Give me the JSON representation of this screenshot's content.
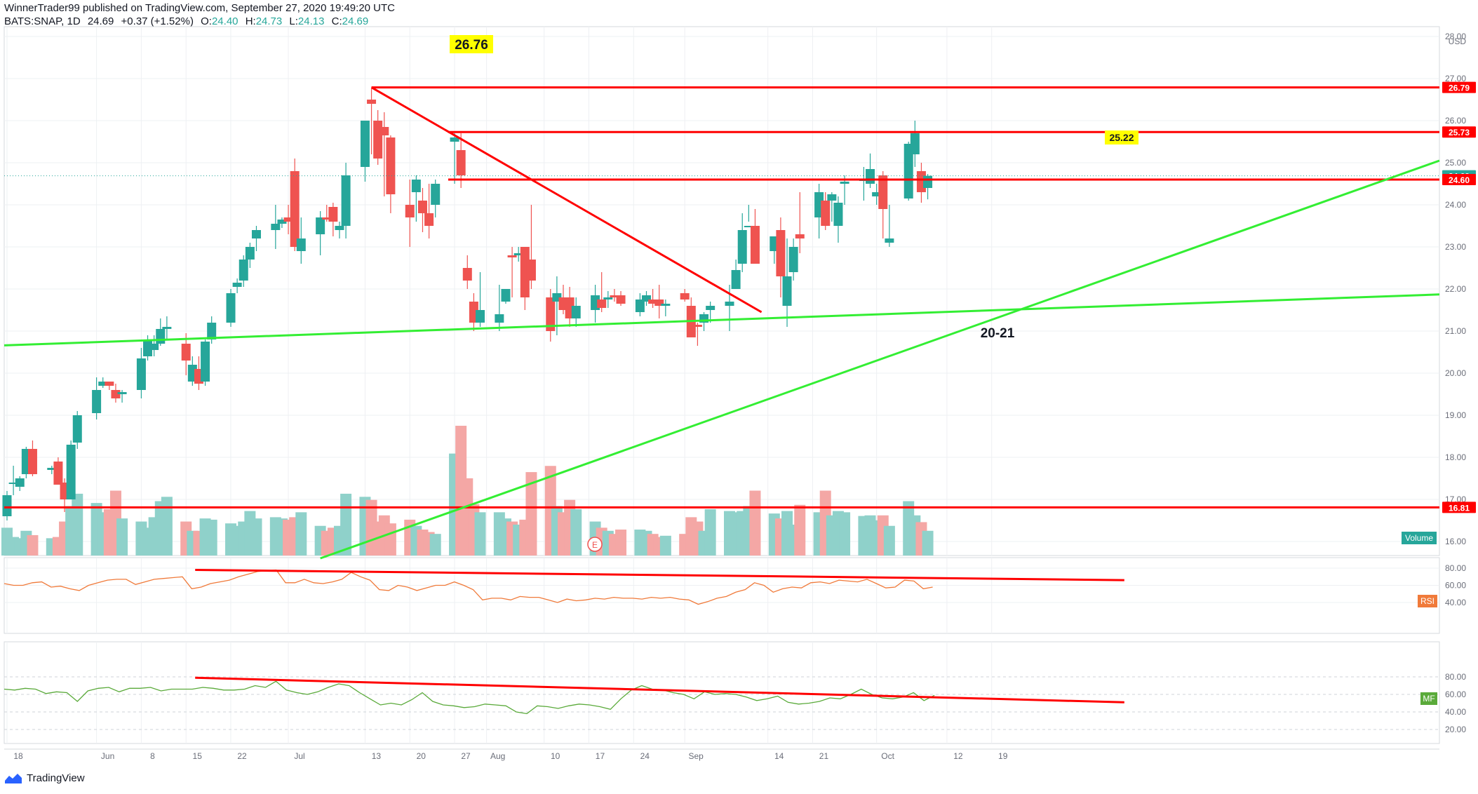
{
  "header": {
    "line1": "WinnerTrader99 published on TradingView.com, September 27, 2020 19:49:20 UTC",
    "symbol": "BATS:SNAP, 1D",
    "last": "24.69",
    "change": "+0.37 (+1.52%)",
    "o_label": "O:",
    "o_val": "24.40",
    "h_label": "H:",
    "h_val": "24.73",
    "l_label": "L:",
    "l_val": "24.13",
    "c_label": "C:",
    "c_val": "24.69"
  },
  "footer": {
    "brand": "TradingView"
  },
  "colors": {
    "up": "#26a69a",
    "down": "#ef5350",
    "vol_up": "#8fd1ca",
    "vol_down": "#f4a7a5",
    "trend_red": "#ff0000",
    "trend_green": "#33ee33",
    "rsi": "#f07a3a",
    "mf": "#5aaa3a",
    "grid": "#eef0f3"
  },
  "annotations": {
    "high_label": "26.76",
    "recent_high_label": "25.22",
    "low_zone_label": "20-21",
    "earnings_marker": "E"
  },
  "price_axis": {
    "unit": "USD",
    "ticks": [
      "28.00",
      "27.00",
      "26.00",
      "25.00",
      "24.00",
      "23.00",
      "22.00",
      "21.00",
      "20.00",
      "19.00",
      "18.00",
      "17.00",
      "16.00"
    ],
    "level_badges": [
      {
        "text": "26.79",
        "value": 26.79
      },
      {
        "text": "25.73",
        "value": 25.73
      },
      {
        "text": "24.69",
        "value": 24.69,
        "kind": "last"
      },
      {
        "text": "24.60",
        "value": 24.6
      },
      {
        "text": "16.81",
        "value": 16.81
      }
    ],
    "volume_label": "Volume"
  },
  "rsi_panel": {
    "label": "RSI",
    "ticks": [
      "80.00",
      "60.00",
      "40.00"
    ]
  },
  "mf_panel": {
    "label": "MF",
    "ticks": [
      "80.00",
      "60.00",
      "40.00",
      "20.00"
    ]
  },
  "x_axis": {
    "ticks": [
      "18",
      "Jun",
      "8",
      "15",
      "22",
      "Jul",
      "13",
      "20",
      "27",
      "Aug",
      "10",
      "17",
      "24",
      "Sep",
      "14",
      "21",
      "Oct",
      "12",
      "19"
    ],
    "tick_days": [
      0,
      14,
      21,
      28,
      35,
      44,
      56,
      63,
      70,
      75,
      84,
      91,
      98,
      106,
      119,
      126,
      136,
      147,
      154
    ]
  },
  "chart_data": {
    "type": "candlestick",
    "symbol": "BATS:SNAP",
    "interval": "1D",
    "x_start": "2020-05-18",
    "candles": {
      "columns": [
        "day_index",
        "open",
        "high",
        "low",
        "close",
        "volume_relative"
      ],
      "rows": [
        [
          0,
          16.6,
          17.2,
          16.5,
          17.1,
          0.45
        ],
        [
          1,
          17.4,
          17.8,
          17.1,
          17.4,
          0.3
        ],
        [
          2,
          17.3,
          17.55,
          17.2,
          17.5,
          0.28
        ],
        [
          3,
          17.6,
          18.25,
          17.5,
          18.2,
          0.4
        ],
        [
          4,
          18.2,
          18.4,
          17.55,
          17.6,
          0.33
        ],
        [
          7,
          17.7,
          17.8,
          17.6,
          17.75,
          0.28
        ],
        [
          8,
          17.9,
          18.0,
          17.4,
          17.35,
          0.3
        ],
        [
          9,
          17.4,
          17.5,
          16.7,
          17.0,
          0.55
        ],
        [
          10,
          17.0,
          18.4,
          17.0,
          18.3,
          0.8
        ],
        [
          11,
          18.35,
          19.1,
          18.2,
          19.0,
          1.0
        ],
        [
          14,
          19.05,
          19.9,
          18.9,
          19.6,
          0.85
        ],
        [
          15,
          19.7,
          19.9,
          19.65,
          19.8,
          0.7
        ],
        [
          16,
          19.8,
          19.8,
          19.6,
          19.7,
          0.75
        ],
        [
          17,
          19.6,
          19.75,
          19.3,
          19.4,
          1.05
        ],
        [
          18,
          19.5,
          19.6,
          19.3,
          19.55,
          0.6
        ],
        [
          21,
          19.6,
          20.6,
          19.4,
          20.35,
          0.55
        ],
        [
          22,
          20.4,
          20.9,
          20.3,
          20.8,
          0.45
        ],
        [
          23,
          20.55,
          20.9,
          20.4,
          20.7,
          0.62
        ],
        [
          24,
          20.7,
          21.3,
          20.65,
          21.05,
          0.88
        ],
        [
          25,
          21.05,
          21.35,
          20.8,
          21.1,
          0.95
        ],
        [
          28,
          20.7,
          20.95,
          19.95,
          20.3,
          0.55
        ],
        [
          29,
          19.8,
          20.4,
          19.7,
          20.2,
          0.4
        ],
        [
          30,
          20.1,
          20.4,
          19.6,
          19.75,
          0.4
        ],
        [
          31,
          19.8,
          20.8,
          19.7,
          20.75,
          0.6
        ],
        [
          32,
          20.8,
          21.35,
          20.7,
          21.2,
          0.58
        ],
        [
          35,
          21.2,
          22.0,
          21.1,
          21.9,
          0.52
        ],
        [
          36,
          22.05,
          22.25,
          21.9,
          22.15,
          0.48
        ],
        [
          37,
          22.2,
          22.8,
          22.05,
          22.7,
          0.55
        ],
        [
          38,
          22.7,
          23.1,
          22.5,
          23.0,
          0.72
        ],
        [
          39,
          23.2,
          23.5,
          22.9,
          23.4,
          0.6
        ],
        [
          42,
          23.4,
          24.0,
          22.95,
          23.55,
          0.62
        ],
        [
          43,
          23.55,
          23.7,
          23.45,
          23.65,
          0.6
        ],
        [
          44,
          23.7,
          24.0,
          23.3,
          23.6,
          0.58
        ],
        [
          45,
          24.8,
          25.1,
          22.9,
          23.0,
          0.62
        ],
        [
          46,
          22.9,
          23.7,
          22.6,
          23.2,
          0.7
        ],
        [
          49,
          23.3,
          23.85,
          22.8,
          23.7,
          0.48
        ],
        [
          50,
          23.7,
          24.0,
          23.6,
          23.65,
          0.4
        ],
        [
          51,
          23.95,
          24.05,
          23.25,
          23.6,
          0.45
        ],
        [
          52,
          23.4,
          23.6,
          23.2,
          23.5,
          0.48
        ],
        [
          53,
          23.5,
          25.0,
          23.2,
          24.7,
          1.0
        ],
        [
          56,
          24.9,
          26.0,
          24.55,
          26.0,
          0.95
        ],
        [
          57,
          26.5,
          26.76,
          25.2,
          26.4,
          0.9
        ],
        [
          58,
          26.0,
          26.25,
          24.95,
          25.1,
          0.55
        ],
        [
          59,
          25.85,
          26.2,
          24.2,
          25.65,
          0.65
        ],
        [
          60,
          25.6,
          25.65,
          23.8,
          24.25,
          0.52
        ],
        [
          63,
          24.0,
          24.6,
          23.0,
          23.7,
          0.58
        ],
        [
          64,
          24.3,
          24.7,
          23.6,
          24.6,
          0.48
        ],
        [
          65,
          24.1,
          24.4,
          23.35,
          23.8,
          0.42
        ],
        [
          66,
          23.8,
          24.5,
          23.2,
          23.5,
          0.38
        ],
        [
          67,
          24.0,
          24.6,
          23.7,
          24.5,
          0.35
        ],
        [
          70,
          25.5,
          25.7,
          24.5,
          25.6,
          1.65
        ],
        [
          71,
          25.3,
          25.7,
          24.4,
          24.7,
          2.1
        ],
        [
          72,
          22.5,
          22.8,
          22.0,
          22.2,
          1.25
        ],
        [
          73,
          21.7,
          21.9,
          21.0,
          21.2,
          0.83
        ],
        [
          74,
          21.2,
          22.4,
          21.1,
          21.5,
          0.7
        ],
        [
          77,
          21.2,
          22.1,
          21.0,
          21.4,
          0.7
        ],
        [
          78,
          21.7,
          22.0,
          21.65,
          22.0,
          0.6
        ],
        [
          79,
          22.8,
          23.0,
          21.8,
          22.75,
          0.55
        ],
        [
          80,
          22.8,
          23.0,
          22.65,
          22.85,
          0.5
        ],
        [
          81,
          23.0,
          23.0,
          21.5,
          21.8,
          0.58
        ],
        [
          82,
          22.7,
          24.0,
          22.0,
          22.2,
          1.35
        ],
        [
          85,
          21.8,
          22.0,
          20.75,
          21.0,
          1.45
        ],
        [
          86,
          21.7,
          22.3,
          20.9,
          21.9,
          0.8
        ],
        [
          87,
          21.8,
          22.1,
          21.4,
          21.5,
          0.7
        ],
        [
          88,
          21.8,
          22.05,
          21.1,
          21.3,
          0.9
        ],
        [
          89,
          21.3,
          21.8,
          21.1,
          21.6,
          0.75
        ],
        [
          92,
          21.5,
          22.1,
          21.2,
          21.85,
          0.55
        ],
        [
          93,
          21.75,
          22.4,
          21.45,
          21.55,
          0.45
        ],
        [
          94,
          21.75,
          21.95,
          21.55,
          21.8,
          0.4
        ],
        [
          95,
          21.85,
          22.0,
          21.7,
          21.8,
          0.35
        ],
        [
          96,
          21.85,
          21.95,
          21.6,
          21.65,
          0.42
        ],
        [
          99,
          21.45,
          21.9,
          21.35,
          21.75,
          0.42
        ],
        [
          100,
          21.7,
          21.95,
          21.6,
          21.85,
          0.4
        ],
        [
          101,
          21.75,
          22.0,
          21.55,
          21.65,
          0.35
        ],
        [
          102,
          21.75,
          22.1,
          21.3,
          21.6,
          0.3
        ],
        [
          103,
          21.6,
          21.75,
          21.35,
          21.65,
          0.32
        ],
        [
          106,
          21.9,
          22.0,
          21.7,
          21.75,
          0.35
        ],
        [
          107,
          21.6,
          21.8,
          21.0,
          20.85,
          0.62
        ],
        [
          108,
          21.15,
          21.2,
          20.65,
          21.1,
          0.55
        ],
        [
          109,
          21.2,
          21.45,
          21.0,
          21.4,
          0.4
        ],
        [
          110,
          21.5,
          21.7,
          21.2,
          21.6,
          0.75
        ],
        [
          113,
          21.6,
          22.1,
          21.0,
          21.7,
          0.72
        ],
        [
          114,
          22.0,
          22.7,
          22.1,
          22.45,
          0.7
        ],
        [
          115,
          22.6,
          23.8,
          22.4,
          23.4,
          0.72
        ],
        [
          116,
          23.5,
          24.0,
          23.6,
          23.5,
          0.8
        ],
        [
          117,
          23.5,
          23.9,
          23.3,
          22.6,
          1.05
        ],
        [
          120,
          22.9,
          23.1,
          22.6,
          23.25,
          0.68
        ],
        [
          121,
          23.4,
          23.7,
          21.8,
          22.3,
          0.6
        ],
        [
          122,
          21.6,
          23.2,
          21.1,
          22.3,
          0.72
        ],
        [
          123,
          22.4,
          23.2,
          22.2,
          23.0,
          0.5
        ],
        [
          124,
          23.3,
          24.3,
          22.85,
          23.2,
          0.82
        ],
        [
          127,
          23.7,
          24.5,
          23.2,
          24.3,
          0.7
        ],
        [
          128,
          24.1,
          24.3,
          23.4,
          23.5,
          1.05
        ],
        [
          129,
          24.1,
          24.3,
          23.6,
          24.25,
          0.65
        ],
        [
          130,
          23.5,
          24.2,
          23.1,
          24.05,
          0.72
        ],
        [
          131,
          24.5,
          24.7,
          24.0,
          24.55,
          0.7
        ],
        [
          134,
          24.6,
          24.9,
          24.1,
          24.6,
          0.64
        ],
        [
          135,
          24.5,
          25.22,
          24.4,
          24.85,
          0.65
        ],
        [
          136,
          24.2,
          24.5,
          24.0,
          24.3,
          0.57
        ],
        [
          137,
          24.7,
          24.8,
          23.2,
          23.9,
          0.65
        ],
        [
          138,
          23.1,
          24.0,
          23.0,
          23.2,
          0.48
        ],
        [
          141,
          24.15,
          25.5,
          24.1,
          25.45,
          0.88
        ],
        [
          142,
          25.2,
          26.0,
          24.9,
          25.7,
          0.65
        ],
        [
          143,
          24.8,
          25.0,
          24.05,
          24.3,
          0.54
        ],
        [
          144,
          24.4,
          24.73,
          24.13,
          24.69,
          0.4
        ]
      ]
    },
    "trend_lines": [
      {
        "color": "red",
        "from": [
          57,
          26.79
        ],
        "to": [
          139,
          26.79
        ]
      },
      {
        "color": "red",
        "from": [
          69,
          25.73
        ],
        "to": [
          139,
          25.73
        ]
      },
      {
        "color": "red",
        "from": [
          69,
          24.6
        ],
        "to": [
          139,
          24.6
        ]
      },
      {
        "color": "red",
        "from": [
          0,
          16.81
        ],
        "to": [
          139,
          16.81
        ]
      },
      {
        "color": "red",
        "from": [
          57,
          26.79
        ],
        "to": [
          118,
          21.45
        ]
      },
      {
        "color": "green",
        "from": [
          0,
          20.66
        ],
        "to": [
          139,
          21.87
        ]
      },
      {
        "color": "green",
        "from": [
          49,
          15.6
        ],
        "to": [
          139,
          25.05
        ]
      }
    ],
    "rsi": {
      "values": [
        62,
        60,
        60,
        63,
        64,
        58,
        59,
        56,
        54,
        60,
        63,
        66,
        67,
        67,
        61,
        64,
        67,
        68,
        69,
        70,
        56,
        58,
        62,
        64,
        66,
        70,
        73,
        76,
        77,
        78,
        63,
        63,
        67,
        63,
        62,
        64,
        67,
        75,
        70,
        66,
        55,
        54,
        60,
        58,
        54,
        57,
        60,
        60,
        64,
        60,
        55,
        43,
        45,
        45,
        43,
        47,
        46,
        46,
        43,
        40,
        44,
        42,
        43,
        45,
        44,
        46,
        45,
        45,
        44,
        46,
        45,
        46,
        44,
        43,
        38,
        41,
        45,
        47,
        52,
        55,
        63,
        60,
        52,
        56,
        58,
        57,
        63,
        64,
        62,
        66,
        65,
        64,
        67,
        62,
        57,
        58,
        66,
        65,
        56,
        58
      ],
      "trend_lines": [
        {
          "from": [
            28,
            78
          ],
          "to": [
            155,
            66
          ]
        }
      ]
    },
    "mf": {
      "values": [
        66,
        65,
        67,
        66,
        61,
        63,
        62,
        52,
        64,
        67,
        68,
        63,
        67,
        67,
        68,
        64,
        66,
        66,
        66,
        68,
        67,
        65,
        65,
        66,
        70,
        68,
        75,
        65,
        62,
        60,
        63,
        68,
        72,
        70,
        62,
        55,
        48,
        50,
        48,
        54,
        62,
        52,
        48,
        47,
        45,
        46,
        49,
        48,
        47,
        40,
        38,
        47,
        46,
        44,
        47,
        49,
        48,
        46,
        43,
        55,
        65,
        70,
        66,
        65,
        62,
        60,
        55,
        63,
        60,
        61,
        60,
        57,
        53,
        55,
        58,
        51,
        49,
        50,
        52,
        56,
        55,
        60,
        66,
        60,
        56,
        55,
        57,
        62,
        53,
        59
      ],
      "trend_lines": [
        {
          "from": [
            28,
            79
          ],
          "to": [
            155,
            51
          ]
        },
        {
          "from": [
            63,
            48
          ],
          "to": [
            154,
            48
          ]
        }
      ]
    }
  }
}
